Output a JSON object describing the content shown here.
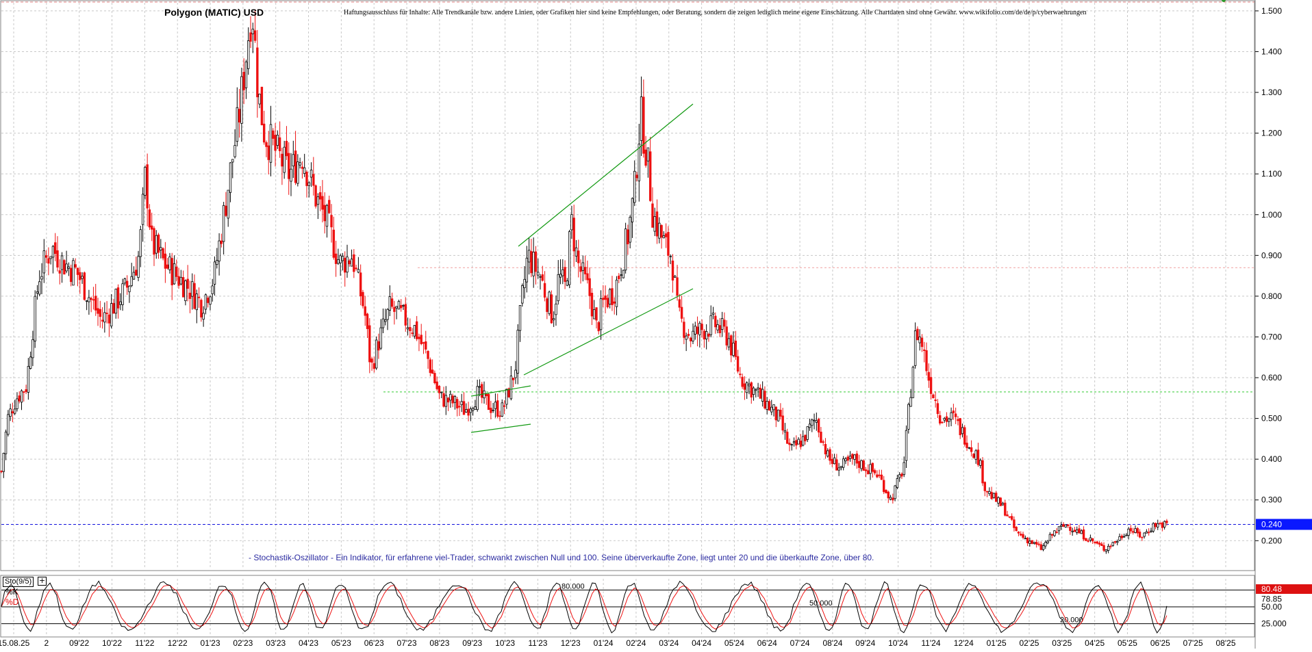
{
  "header": {
    "title": "Polygon (MATIC) USD",
    "disclaimer": "Haftungsausschluss für Inhalte: Alle Trendkanäle bzw. andere Linien, oder Grafiken hier sind keine Empfehlungen, oder Beratung, sondern die zeigen lediglich meine eigene Einschätzung. Alle Chartdaten sind ohne Gewähr.  www.wikifolio.com/de/de/p/cyberwaehrungen"
  },
  "note": "- Stochastik-Oszillator - Ein Indikator, für erfahrene viel-Trader, schwankt zwischen Null und 100. Seine überverkaufte Zone, liegt unter 20 und die überkaufte Zone, über 80.",
  "indicator": {
    "name": "Sto(9/5)",
    "k_label": "%K",
    "d_label": "%D",
    "k_value": "78.85",
    "d_value": "80.48",
    "levels": [
      "80.000",
      "50.000",
      "20.000"
    ],
    "axis_ticks": [
      "50.00",
      "25.000"
    ]
  },
  "colors": {
    "up_candle": "#000000",
    "down_candle": "#ee1111",
    "trend_lines": "#119911",
    "resistance_line": "#f0a0a0",
    "support_line": "#33cc33",
    "current_price_line": "#1010dd",
    "current_price_badge": "#0a18ff",
    "stoch_k": "#000000",
    "stoch_d": "#ee1111",
    "d_badge": "#dd1111",
    "grid": "#c8c8c8"
  },
  "chart_data": {
    "type": "candlestick",
    "title": "Polygon (MATIC) USD",
    "ylim": [
      0.13,
      1.52
    ],
    "y_ticks": [
      "1.500",
      "1.400",
      "1.300",
      "1.200",
      "1.100",
      "1.000",
      "0.900",
      "0.800",
      "0.700",
      "0.600",
      "0.500",
      "0.400",
      "0.300",
      "0.200"
    ],
    "x_tick_labels": [
      "15.08.25",
      "2",
      "09'22",
      "10'22",
      "11'22",
      "12'22",
      "01'23",
      "02'23",
      "03'23",
      "04'23",
      "05'23",
      "06'23",
      "07'23",
      "08'23",
      "09'23",
      "10'23",
      "11'23",
      "12'23",
      "01'24",
      "02'24",
      "03'24",
      "04'24",
      "05'24",
      "06'24",
      "07'24",
      "08'24",
      "09'24",
      "10'24",
      "11'24",
      "12'24",
      "01'25",
      "02'25",
      "03'25",
      "04'25",
      "05'25",
      "06'25",
      "07'25",
      "08'25"
    ],
    "current_price": "0.240",
    "horizontal_levels": [
      0.87,
      0.565,
      0.24
    ],
    "price_path": [
      [
        0,
        0.37
      ],
      [
        0.005,
        0.5
      ],
      [
        0.012,
        0.55
      ],
      [
        0.02,
        0.58
      ],
      [
        0.025,
        0.72
      ],
      [
        0.03,
        0.85
      ],
      [
        0.04,
        0.92
      ],
      [
        0.05,
        0.88
      ],
      [
        0.06,
        0.86
      ],
      [
        0.07,
        0.8
      ],
      [
        0.08,
        0.74
      ],
      [
        0.09,
        0.78
      ],
      [
        0.1,
        0.82
      ],
      [
        0.11,
        0.9
      ],
      [
        0.115,
        1.1
      ],
      [
        0.12,
        0.93
      ],
      [
        0.13,
        0.88
      ],
      [
        0.14,
        0.85
      ],
      [
        0.15,
        0.82
      ],
      [
        0.16,
        0.78
      ],
      [
        0.17,
        0.85
      ],
      [
        0.18,
        1.05
      ],
      [
        0.19,
        1.25
      ],
      [
        0.2,
        1.52
      ],
      [
        0.205,
        1.3
      ],
      [
        0.21,
        1.2
      ],
      [
        0.22,
        1.15
      ],
      [
        0.23,
        1.1
      ],
      [
        0.24,
        1.15
      ],
      [
        0.25,
        1.05
      ],
      [
        0.26,
        0.98
      ],
      [
        0.27,
        0.88
      ],
      [
        0.28,
        0.9
      ],
      [
        0.29,
        0.76
      ],
      [
        0.295,
        0.62
      ],
      [
        0.3,
        0.68
      ],
      [
        0.31,
        0.77
      ],
      [
        0.32,
        0.75
      ],
      [
        0.33,
        0.72
      ],
      [
        0.34,
        0.65
      ],
      [
        0.35,
        0.55
      ],
      [
        0.36,
        0.54
      ],
      [
        0.37,
        0.52
      ],
      [
        0.38,
        0.56
      ],
      [
        0.39,
        0.53
      ],
      [
        0.4,
        0.52
      ],
      [
        0.41,
        0.62
      ],
      [
        0.415,
        0.78
      ],
      [
        0.42,
        0.9
      ],
      [
        0.43,
        0.85
      ],
      [
        0.44,
        0.75
      ],
      [
        0.445,
        0.85
      ],
      [
        0.45,
        0.82
      ],
      [
        0.455,
        0.98
      ],
      [
        0.46,
        0.88
      ],
      [
        0.47,
        0.8
      ],
      [
        0.475,
        0.72
      ],
      [
        0.48,
        0.78
      ],
      [
        0.49,
        0.82
      ],
      [
        0.5,
        0.95
      ],
      [
        0.505,
        1.05
      ],
      [
        0.51,
        1.25
      ],
      [
        0.515,
        1.15
      ],
      [
        0.52,
        1.0
      ],
      [
        0.53,
        0.92
      ],
      [
        0.535,
        0.9
      ],
      [
        0.54,
        0.75
      ],
      [
        0.55,
        0.7
      ],
      [
        0.56,
        0.72
      ],
      [
        0.57,
        0.73
      ],
      [
        0.58,
        0.7
      ],
      [
        0.59,
        0.6
      ],
      [
        0.6,
        0.57
      ],
      [
        0.61,
        0.54
      ],
      [
        0.62,
        0.5
      ],
      [
        0.63,
        0.42
      ],
      [
        0.64,
        0.45
      ],
      [
        0.65,
        0.5
      ],
      [
        0.66,
        0.4
      ],
      [
        0.67,
        0.38
      ],
      [
        0.68,
        0.4
      ],
      [
        0.69,
        0.38
      ],
      [
        0.7,
        0.36
      ],
      [
        0.71,
        0.3
      ],
      [
        0.72,
        0.38
      ],
      [
        0.725,
        0.55
      ],
      [
        0.73,
        0.72
      ],
      [
        0.735,
        0.68
      ],
      [
        0.74,
        0.6
      ],
      [
        0.75,
        0.5
      ],
      [
        0.76,
        0.5
      ],
      [
        0.77,
        0.45
      ],
      [
        0.78,
        0.4
      ],
      [
        0.785,
        0.33
      ],
      [
        0.79,
        0.31
      ],
      [
        0.8,
        0.28
      ],
      [
        0.81,
        0.22
      ],
      [
        0.82,
        0.2
      ],
      [
        0.83,
        0.18
      ],
      [
        0.84,
        0.22
      ],
      [
        0.85,
        0.24
      ],
      [
        0.86,
        0.22
      ],
      [
        0.87,
        0.2
      ],
      [
        0.88,
        0.18
      ],
      [
        0.89,
        0.2
      ],
      [
        0.9,
        0.23
      ],
      [
        0.91,
        0.21
      ],
      [
        0.92,
        0.24
      ],
      [
        0.93,
        0.24
      ]
    ],
    "stochastic": {
      "k_last": 78.85,
      "d_last": 80.48,
      "overbought": 80,
      "middle": 50,
      "oversold": 20
    }
  }
}
